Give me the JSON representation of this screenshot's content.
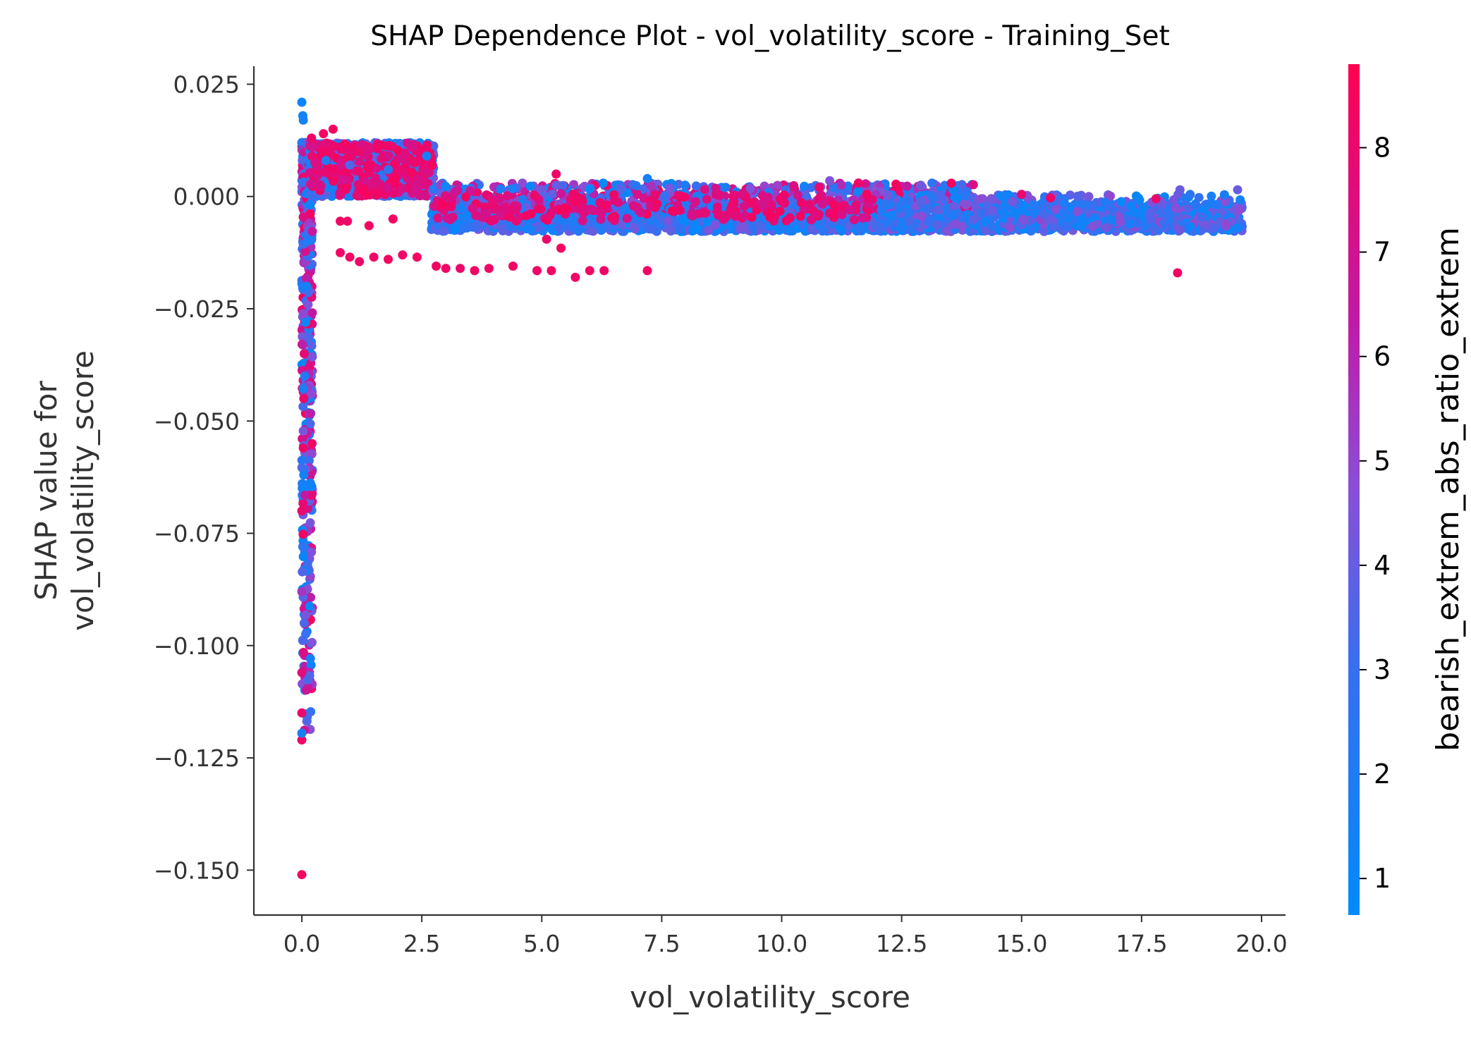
{
  "chart_data": {
    "type": "scatter",
    "title": "SHAP Dependence Plot - vol_volatility_score - Training_Set",
    "xlabel": "vol_volatility_score",
    "ylabel_lines": [
      "SHAP value for",
      "vol_volatility_score"
    ],
    "xlim": [
      -1.0,
      20.5
    ],
    "ylim": [
      -0.16,
      0.029
    ],
    "xticks": [
      0.0,
      2.5,
      5.0,
      7.5,
      10.0,
      12.5,
      15.0,
      17.5,
      20.0
    ],
    "xtick_labels": [
      "0.0",
      "2.5",
      "5.0",
      "7.5",
      "10.0",
      "12.5",
      "15.0",
      "17.5",
      "20.0"
    ],
    "yticks": [
      0.025,
      0.0,
      -0.025,
      -0.05,
      -0.075,
      -0.1,
      -0.125,
      -0.15
    ],
    "ytick_labels": [
      "0.025",
      "0.000",
      "−0.025",
      "−0.050",
      "−0.075",
      "−0.100",
      "−0.125",
      "−0.150"
    ],
    "colorbar": {
      "label": "bearish_extrem_abs_ratio_extrem",
      "range": [
        0.65,
        8.8
      ],
      "ticks": [
        1,
        2,
        3,
        4,
        5,
        6,
        7,
        8
      ],
      "tick_labels": [
        "1",
        "2",
        "3",
        "4",
        "5",
        "6",
        "7",
        "8"
      ],
      "low_color": "#008bfb",
      "mid_color": "#8a4fd6",
      "high_color": "#ff0052"
    },
    "grid": false,
    "legend": "colorbar-right",
    "points": [
      {
        "x": 0.0,
        "y": 0.021,
        "c": 1.2
      },
      {
        "x": 0.02,
        "y": 0.018,
        "c": 1.3
      },
      {
        "x": 0.03,
        "y": 0.017,
        "c": 1.5
      },
      {
        "x": 0.2,
        "y": 0.013,
        "c": 8.2
      },
      {
        "x": 0.45,
        "y": 0.014,
        "c": 8.3
      },
      {
        "x": 0.65,
        "y": 0.015,
        "c": 8.4
      },
      {
        "x": 0.8,
        "y": 0.011,
        "c": 8.1
      },
      {
        "x": 1.2,
        "y": 0.01,
        "c": 8.0
      },
      {
        "x": 1.6,
        "y": 0.011,
        "c": 8.2
      },
      {
        "x": 0.5,
        "y": 0.008,
        "c": 2.0
      },
      {
        "x": 1.0,
        "y": 0.007,
        "c": 3.5
      },
      {
        "x": 1.8,
        "y": 0.006,
        "c": 2.5
      },
      {
        "x": 2.3,
        "y": 0.008,
        "c": 8.0
      },
      {
        "x": 2.6,
        "y": 0.009,
        "c": 1.5
      },
      {
        "x": 0.8,
        "y": -0.0055,
        "c": 8.3
      },
      {
        "x": 0.95,
        "y": -0.0055,
        "c": 8.2
      },
      {
        "x": 1.4,
        "y": -0.0065,
        "c": 8.4
      },
      {
        "x": 1.9,
        "y": -0.005,
        "c": 8.3
      },
      {
        "x": 0.8,
        "y": -0.0125,
        "c": 8.2
      },
      {
        "x": 1.0,
        "y": -0.0135,
        "c": 8.3
      },
      {
        "x": 1.2,
        "y": -0.0145,
        "c": 8.1
      },
      {
        "x": 1.5,
        "y": -0.0135,
        "c": 8.2
      },
      {
        "x": 1.8,
        "y": -0.014,
        "c": 8.3
      },
      {
        "x": 2.1,
        "y": -0.013,
        "c": 8.2
      },
      {
        "x": 2.4,
        "y": -0.0135,
        "c": 8.4
      },
      {
        "x": 2.8,
        "y": -0.0155,
        "c": 8.3
      },
      {
        "x": 3.0,
        "y": -0.016,
        "c": 8.2
      },
      {
        "x": 3.3,
        "y": -0.016,
        "c": 8.1
      },
      {
        "x": 3.6,
        "y": -0.0165,
        "c": 8.3
      },
      {
        "x": 3.9,
        "y": -0.016,
        "c": 8.2
      },
      {
        "x": 4.4,
        "y": -0.0155,
        "c": 8.3
      },
      {
        "x": 4.9,
        "y": -0.0165,
        "c": 8.2
      },
      {
        "x": 5.2,
        "y": -0.0165,
        "c": 8.3
      },
      {
        "x": 5.1,
        "y": -0.0095,
        "c": 8.1
      },
      {
        "x": 5.4,
        "y": -0.0115,
        "c": 8.4
      },
      {
        "x": 5.7,
        "y": -0.018,
        "c": 8.2
      },
      {
        "x": 6.0,
        "y": -0.0165,
        "c": 8.3
      },
      {
        "x": 6.3,
        "y": -0.0165,
        "c": 8.2
      },
      {
        "x": 7.2,
        "y": -0.0165,
        "c": 8.3
      },
      {
        "x": 18.25,
        "y": -0.017,
        "c": 8.3
      },
      {
        "x": 0.0,
        "y": -0.151,
        "c": 8.4
      },
      {
        "x": 0.0,
        "y": -0.121,
        "c": 8.2
      },
      {
        "x": 0.0,
        "y": -0.1195,
        "c": 1.8
      },
      {
        "x": 0.0,
        "y": -0.115,
        "c": 8.0
      },
      {
        "x": 0.0,
        "y": -0.106,
        "c": 7.5
      },
      {
        "x": 0.0,
        "y": -0.07,
        "c": 8.0
      },
      {
        "x": 0.03,
        "y": -0.056,
        "c": 8.2
      },
      {
        "x": 0.04,
        "y": -0.045,
        "c": 8.1
      },
      {
        "x": 0.05,
        "y": -0.035,
        "c": 7.8
      },
      {
        "x": 5.3,
        "y": 0.005,
        "c": 8.2
      },
      {
        "x": 5.3,
        "y": 0.0025,
        "c": 4.0
      },
      {
        "x": 7.2,
        "y": 0.004,
        "c": 1.5
      },
      {
        "x": 11.0,
        "y": 0.0035,
        "c": 4.5
      },
      {
        "x": 11.6,
        "y": 0.003,
        "c": 8.2
      },
      {
        "x": 12.9,
        "y": 0.0025,
        "c": 4.2
      },
      {
        "x": 15.0,
        "y": 0.0005,
        "c": 8.0
      },
      {
        "x": 15.6,
        "y": -0.0003,
        "c": 8.2
      },
      {
        "x": 17.8,
        "y": -0.0005,
        "c": 8.1
      },
      {
        "x": 18.3,
        "y": 0.0015,
        "c": 4.0
      },
      {
        "x": 18.3,
        "y": -0.0075,
        "c": 4.2
      },
      {
        "x": 19.0,
        "y": -0.007,
        "c": 3.5
      },
      {
        "x": 19.5,
        "y": 0.0015,
        "c": 4.0
      },
      {
        "x": 19.5,
        "y": -0.007,
        "c": 1.5
      },
      {
        "x": 0.05,
        "y": -0.095,
        "c": 3.5
      },
      {
        "x": 0.0,
        "y": -0.088,
        "c": 5.5
      },
      {
        "x": 0.02,
        "y": -0.078,
        "c": 2.5
      },
      {
        "x": 0.04,
        "y": -0.062,
        "c": 1.5
      },
      {
        "x": 0.06,
        "y": -0.04,
        "c": 2.0
      },
      {
        "x": 0.08,
        "y": -0.028,
        "c": 1.3
      },
      {
        "x": 0.1,
        "y": -0.02,
        "c": 1.5
      },
      {
        "x": 0.1,
        "y": -0.01,
        "c": 2.0
      }
    ],
    "clusters": [
      {
        "x": [
          0.0,
          0.22
        ],
        "y": [
          -0.12,
          0.012
        ],
        "c": [
          0.8,
          8.5
        ],
        "n": 550
      },
      {
        "x": [
          0.15,
          2.75
        ],
        "y": [
          0.0,
          0.012
        ],
        "c": [
          0.8,
          4.5
        ],
        "n": 1300
      },
      {
        "x": [
          0.15,
          2.75
        ],
        "y": [
          0.0,
          0.012
        ],
        "c": [
          7.0,
          8.5
        ],
        "n": 220
      },
      {
        "x": [
          2.7,
          19.6
        ],
        "y": [
          -0.0078,
          -0.0015
        ],
        "c": [
          0.8,
          4.5
        ],
        "n": 2300
      },
      {
        "x": [
          2.7,
          14.0
        ],
        "y": [
          -0.003,
          0.003
        ],
        "c": [
          0.8,
          8.5
        ],
        "n": 700
      },
      {
        "x": [
          2.7,
          12.0
        ],
        "y": [
          -0.0055,
          0.0005
        ],
        "c": [
          7.0,
          8.5
        ],
        "n": 180
      },
      {
        "x": [
          12.0,
          19.6
        ],
        "y": [
          -0.007,
          0.0005
        ],
        "c": [
          0.8,
          5.0
        ],
        "n": 350
      }
    ]
  }
}
